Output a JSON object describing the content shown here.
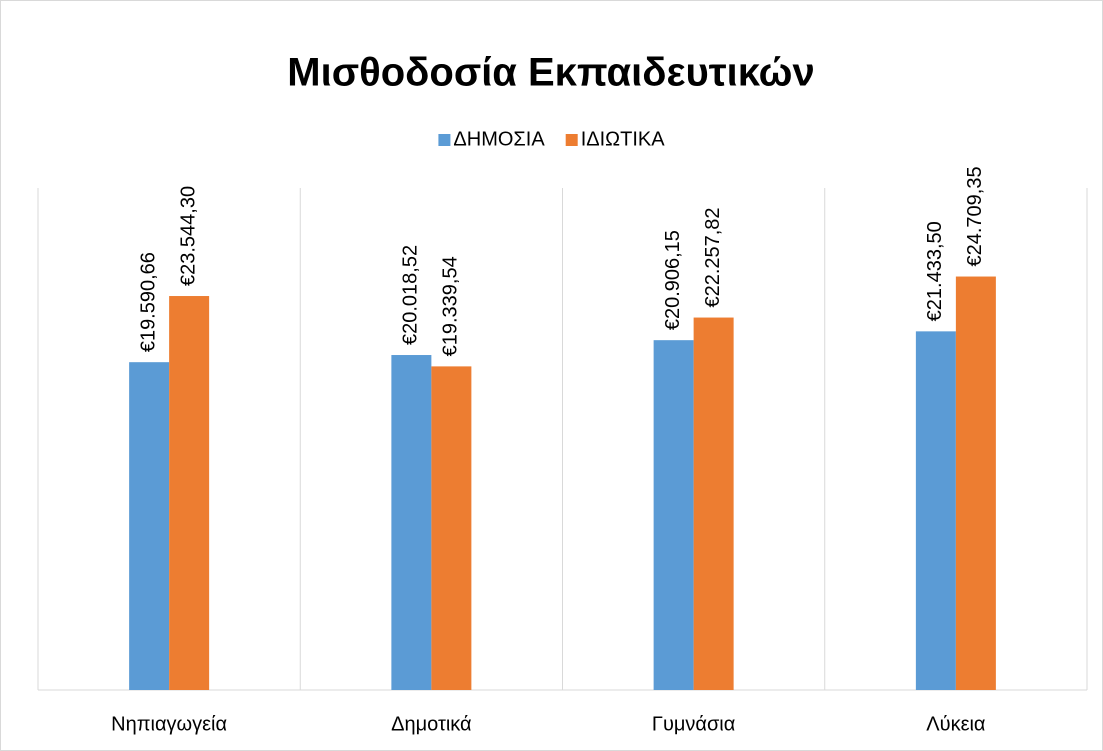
{
  "chart_data": {
    "type": "bar",
    "title": "Μισθοδοσία Εκπαιδευτικών",
    "categories": [
      "Νηπιαγωγεία",
      "Δημοτικά",
      "Γυμνάσια",
      "Λύκεια"
    ],
    "series": [
      {
        "name": "ΔΗΜΟΣΙΑ",
        "color": "#5b9bd5",
        "values": [
          19590.66,
          20018.52,
          20906.15,
          21433.5
        ],
        "value_labels": [
          "€19.590,66",
          "€20.018,52",
          "€20.906,15",
          "€21.433,50"
        ]
      },
      {
        "name": "ΙΔΙΩΤΙΚΑ",
        "color": "#ed7d31",
        "values": [
          23544.3,
          19339.54,
          22257.82,
          24709.35
        ],
        "value_labels": [
          "€23.544,30",
          "€19.339,54",
          "€22.257,82",
          "€24.709,35"
        ]
      }
    ],
    "ylim": [
      0,
      30000
    ],
    "grid": true,
    "legend": "top"
  }
}
